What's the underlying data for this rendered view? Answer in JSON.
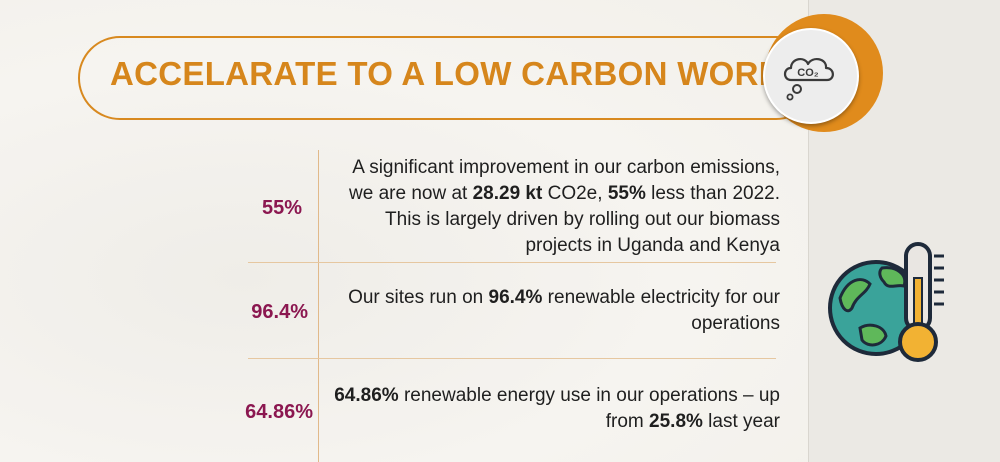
{
  "header": {
    "title": "ACCELARATE TO A LOW CARBON WORLD",
    "badge_icon": "co2-cloud-icon",
    "badge_text": "CO₂"
  },
  "colors": {
    "accent_orange": "#d6861c",
    "stat_maroon": "#8b1750",
    "text": "#1f1f1f"
  },
  "stats": [
    {
      "value": "55%",
      "parts": [
        {
          "t": "A significant improvement in our carbon emissions, we are now at ",
          "b": false
        },
        {
          "t": "28.29 kt",
          "b": true
        },
        {
          "t": " CO2e, ",
          "b": false
        },
        {
          "t": "55%",
          "b": true
        },
        {
          "t": " less than 2022. This is largely driven by rolling out our biomass projects in Uganda and Kenya",
          "b": false
        }
      ]
    },
    {
      "value": "96.4%",
      "parts": [
        {
          "t": "Our sites run on ",
          "b": false
        },
        {
          "t": "96.4%",
          "b": true
        },
        {
          "t": " renewable electricity for our operations",
          "b": false
        }
      ]
    },
    {
      "value": "64.86%",
      "parts": [
        {
          "t": "64.86%",
          "b": true
        },
        {
          "t": " renewable energy use in our operations – up from ",
          "b": false
        },
        {
          "t": "25.8%",
          "b": true
        },
        {
          "t": " last year",
          "b": false
        }
      ]
    }
  ],
  "illustration": {
    "icon": "globe-thermometer-icon"
  }
}
